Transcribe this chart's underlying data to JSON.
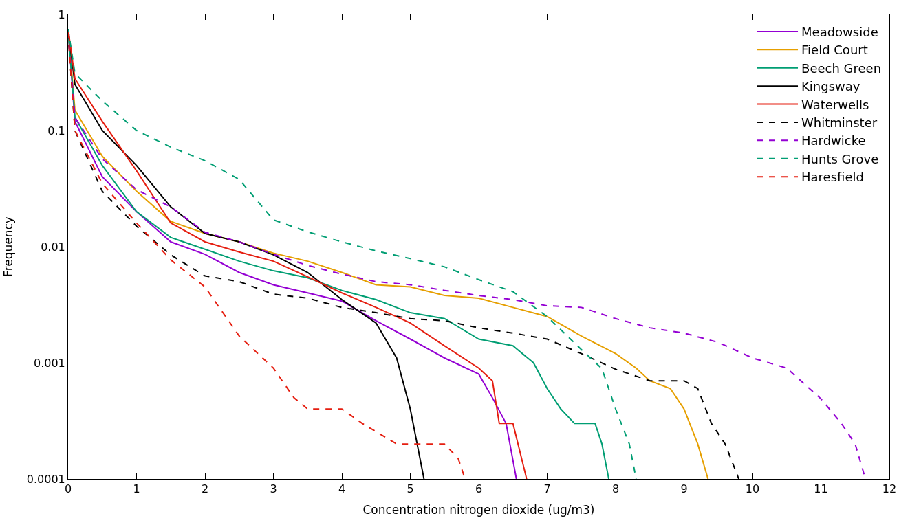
{
  "chart_data": {
    "type": "line",
    "xlabel": "Concentration nitrogen dioxide (ug/m3)",
    "ylabel": "Frequency",
    "log": "y",
    "xlim": [
      0,
      12
    ],
    "ylim": [
      0.0001,
      1
    ],
    "xticks": [
      0,
      1,
      2,
      3,
      4,
      5,
      6,
      7,
      8,
      9,
      10,
      11,
      12
    ],
    "yticks": [
      0.0001,
      0.001,
      0.01,
      0.1,
      1
    ],
    "legend": "top right",
    "marker": "none",
    "series": [
      {
        "name": "Meadowside",
        "color": "#9400d3",
        "line_style": "solid",
        "x": [
          0,
          0.1,
          0.5,
          1,
          1.5,
          2,
          2.5,
          3,
          3.5,
          4,
          4.5,
          5,
          5.5,
          6,
          6.2,
          6.4,
          6.55
        ],
        "values": [
          0.75,
          0.12,
          0.04,
          0.02,
          0.011,
          0.0086,
          0.006,
          0.0047,
          0.004,
          0.0034,
          0.0023,
          0.0016,
          0.0011,
          0.0008,
          0.0005,
          0.0003,
          0.0001
        ]
      },
      {
        "name": "Field Court",
        "color": "#e69f00",
        "line_style": "solid",
        "x": [
          0,
          0.1,
          0.5,
          1,
          1.5,
          2,
          2.5,
          3,
          3.5,
          4,
          4.5,
          5,
          5.5,
          6,
          6.5,
          7,
          7.5,
          8,
          8.3,
          8.5,
          8.8,
          9,
          9.2,
          9.35
        ],
        "values": [
          0.75,
          0.15,
          0.06,
          0.03,
          0.0165,
          0.013,
          0.011,
          0.0088,
          0.0075,
          0.006,
          0.0047,
          0.0045,
          0.0038,
          0.0036,
          0.003,
          0.0025,
          0.0017,
          0.0012,
          0.0009,
          0.0007,
          0.0006,
          0.0004,
          0.0002,
          0.0001
        ]
      },
      {
        "name": "Beech Green",
        "color": "#009e73",
        "line_style": "solid",
        "x": [
          0,
          0.1,
          0.5,
          1,
          1.5,
          2,
          2.5,
          3,
          3.5,
          4,
          4.5,
          5,
          5.5,
          6,
          6.5,
          6.8,
          7,
          7.2,
          7.4,
          7.7,
          7.8,
          7.9
        ],
        "values": [
          0.75,
          0.13,
          0.05,
          0.02,
          0.012,
          0.0095,
          0.0075,
          0.0062,
          0.0054,
          0.0042,
          0.0035,
          0.0027,
          0.0024,
          0.0016,
          0.0014,
          0.001,
          0.0006,
          0.0004,
          0.0003,
          0.0003,
          0.0002,
          0.0001
        ]
      },
      {
        "name": "Kingsway",
        "color": "#000000",
        "line_style": "solid",
        "x": [
          0,
          0.1,
          0.5,
          1,
          1.5,
          2,
          2.5,
          3,
          3.5,
          4,
          4.5,
          4.8,
          5,
          5.2
        ],
        "values": [
          0.75,
          0.25,
          0.1,
          0.05,
          0.022,
          0.013,
          0.011,
          0.0085,
          0.006,
          0.0035,
          0.0022,
          0.0011,
          0.0004,
          0.0001
        ]
      },
      {
        "name": "Waterwells",
        "color": "#e51e10",
        "line_style": "solid",
        "x": [
          0,
          0.1,
          0.5,
          1,
          1.5,
          2,
          2.5,
          3,
          3.5,
          4,
          4.5,
          5,
          5.5,
          6,
          6.2,
          6.3,
          6.5,
          6.7
        ],
        "values": [
          0.75,
          0.28,
          0.12,
          0.045,
          0.016,
          0.011,
          0.009,
          0.0075,
          0.0055,
          0.004,
          0.003,
          0.0022,
          0.0014,
          0.0009,
          0.0007,
          0.0003,
          0.0003,
          0.0001
        ]
      },
      {
        "name": "Whitminster",
        "color": "#000000",
        "line_style": "dashed",
        "x": [
          0,
          0.1,
          0.5,
          1,
          1.5,
          2,
          2.5,
          3,
          3.5,
          4,
          4.5,
          5,
          5.5,
          6,
          6.5,
          7,
          7.5,
          8,
          8.5,
          9,
          9.2,
          9.4,
          9.6,
          9.8
        ],
        "values": [
          0.7,
          0.1,
          0.03,
          0.015,
          0.0085,
          0.0056,
          0.005,
          0.0039,
          0.0036,
          0.003,
          0.0027,
          0.0024,
          0.0023,
          0.002,
          0.0018,
          0.0016,
          0.0012,
          0.00088,
          0.0007,
          0.0007,
          0.0006,
          0.0003,
          0.0002,
          0.0001
        ]
      },
      {
        "name": "Hardwicke",
        "color": "#9400d3",
        "line_style": "dashed",
        "x": [
          0,
          0.1,
          0.5,
          1,
          1.5,
          2,
          2.5,
          3,
          3.5,
          4,
          4.5,
          5,
          5.5,
          6,
          6.5,
          7,
          7.5,
          8,
          8.5,
          9,
          9.5,
          10,
          10.5,
          11,
          11.3,
          11.5,
          11.65
        ],
        "values": [
          0.7,
          0.13,
          0.057,
          0.031,
          0.022,
          0.0133,
          0.011,
          0.0086,
          0.0069,
          0.0058,
          0.005,
          0.0047,
          0.0042,
          0.0038,
          0.0035,
          0.0031,
          0.003,
          0.0024,
          0.002,
          0.0018,
          0.0015,
          0.0011,
          0.0009,
          0.00049,
          0.0003,
          0.0002,
          0.0001
        ]
      },
      {
        "name": "Hunts Grove",
        "color": "#009e73",
        "line_style": "dashed",
        "x": [
          0,
          0.1,
          0.5,
          1,
          1.5,
          2,
          2.5,
          3,
          3.5,
          4,
          4.5,
          5,
          5.5,
          6,
          6.5,
          7,
          7.5,
          7.8,
          8,
          8.2,
          8.3
        ],
        "values": [
          0.75,
          0.31,
          0.18,
          0.1,
          0.072,
          0.055,
          0.038,
          0.017,
          0.0134,
          0.011,
          0.0092,
          0.0079,
          0.0067,
          0.0052,
          0.0041,
          0.0025,
          0.0013,
          0.00089,
          0.0004,
          0.0002,
          0.0001
        ]
      },
      {
        "name": "Haresfield",
        "color": "#e51e10",
        "line_style": "dashed",
        "x": [
          0,
          0.1,
          0.5,
          1,
          1.5,
          2,
          2.5,
          3,
          3.3,
          3.5,
          4,
          4.3,
          4.8,
          5.5,
          5.7,
          5.8
        ],
        "values": [
          0.7,
          0.1,
          0.035,
          0.016,
          0.0077,
          0.0045,
          0.0017,
          0.0009,
          0.0005,
          0.0004,
          0.0004,
          0.0003,
          0.0002,
          0.0002,
          0.00015,
          0.0001
        ]
      }
    ]
  }
}
